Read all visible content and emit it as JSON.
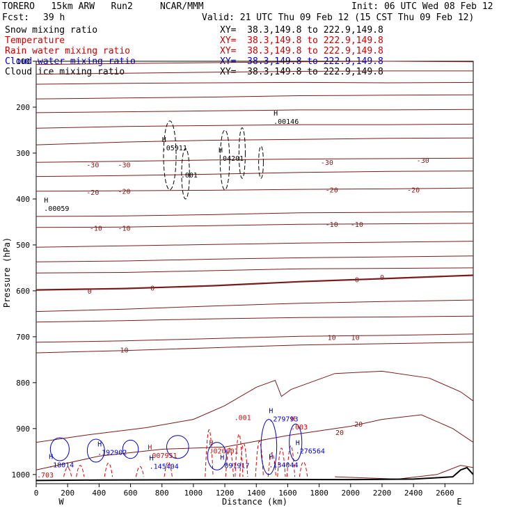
{
  "header": {
    "model": "TORERO   15km ARW   Run2     NCAR/MMM",
    "init": "Init: 06 UTC Wed 08 Feb 12",
    "fcst_label": "Fcst:",
    "fcst_value": "39 h",
    "valid": "Valid: 21 UTC Thu 09 Feb 12 (15 CST Thu 09 Feb 12)"
  },
  "fields": [
    {
      "name": "Snow mixing ratio",
      "xy": "XY=  38.3,149.8 to 222.9,149.8",
      "color": "#000000",
      "xy_color": "#000000"
    },
    {
      "name": "Temperature",
      "xy": "XY=  38.3,149.8 to 222.9,149.8",
      "color": "#cc0000",
      "xy_color": "#cc0000"
    },
    {
      "name": "Rain water mixing ratio",
      "xy": "XY=  38.3,149.8 to 222.9,149.8",
      "color": "#cc0000",
      "xy_color": "#cc0000"
    },
    {
      "name": "Cloud water mixing ratio",
      "xy": "XY=  38.3,149.8 to 222.9,149.8",
      "color": "#0000cc",
      "xy_color": "#0000cc"
    },
    {
      "name": "Cloud ice mixing ratio",
      "xy": "XY=  38.3,149.8 to 222.9,149.8",
      "color": "#000000",
      "xy_color": "#000000"
    }
  ],
  "chart_data": {
    "type": "line",
    "xlabel": "Distance (km)",
    "ylabel": "Pressure (hPa)",
    "xlim": [
      0,
      2780
    ],
    "ylim": [
      1020,
      100
    ],
    "x_ticks": [
      0,
      200,
      400,
      600,
      800,
      1000,
      1200,
      1400,
      1600,
      1800,
      2000,
      2200,
      2400,
      2600
    ],
    "y_ticks": [
      100,
      200,
      300,
      400,
      500,
      600,
      700,
      800,
      900,
      1000
    ],
    "x_end_labels": {
      "left": "W",
      "right": "E"
    },
    "temperature_isotherm_labels": [
      {
        "value": "-30",
        "x": 360,
        "p": 325
      },
      {
        "value": "-30",
        "x": 560,
        "p": 325
      },
      {
        "value": "-30",
        "x": 1850,
        "p": 320
      },
      {
        "value": "-30",
        "x": 2460,
        "p": 315
      },
      {
        "value": "-20",
        "x": 360,
        "p": 385
      },
      {
        "value": "-20",
        "x": 560,
        "p": 383
      },
      {
        "value": "-20",
        "x": 1880,
        "p": 380
      },
      {
        "value": "-20",
        "x": 2400,
        "p": 380
      },
      {
        "value": "-10",
        "x": 380,
        "p": 463
      },
      {
        "value": "-10",
        "x": 560,
        "p": 463
      },
      {
        "value": "-10",
        "x": 1880,
        "p": 455
      },
      {
        "value": "-10",
        "x": 2040,
        "p": 455
      },
      {
        "value": "0",
        "x": 340,
        "p": 600
      },
      {
        "value": "0",
        "x": 740,
        "p": 593
      },
      {
        "value": "0",
        "x": 2040,
        "p": 575
      },
      {
        "value": "0",
        "x": 2200,
        "p": 570
      },
      {
        "value": "10",
        "x": 560,
        "p": 728
      },
      {
        "value": "10",
        "x": 1880,
        "p": 701
      },
      {
        "value": "10",
        "x": 2030,
        "p": 701
      },
      {
        "value": "20",
        "x": 1930,
        "p": 908
      },
      {
        "value": "20",
        "x": 2050,
        "p": 890
      }
    ],
    "snow_maxima": [
      {
        "label": "H",
        "value": ".05911",
        "x": 800,
        "p": 285
      },
      {
        "label": "H",
        "value": ".04201",
        "x": 1160,
        "p": 308
      },
      {
        "label": "H",
        "value": ".00146",
        "x": 1510,
        "p": 227
      },
      {
        "label": "H",
        "value": ".00059",
        "x": 50,
        "p": 417
      },
      {
        "label": "",
        "value": ".001",
        "x": 920,
        "p": 344
      }
    ],
    "rain_maxima": [
      {
        "label": "H",
        "value": ".007951",
        "x": 710,
        "p": 955
      },
      {
        "label": "H",
        "value": ".020001",
        "x": 1100,
        "p": 945
      },
      {
        "label": "",
        "value": ".001",
        "x": 1260,
        "p": 872
      },
      {
        "label": "H",
        "value": ".003",
        "x": 1620,
        "p": 893
      }
    ],
    "cloud_water_maxima": [
      {
        "label": "H",
        "value": ".18014",
        "x": 80,
        "p": 975
      },
      {
        "label": "H",
        "value": ".145404",
        "x": 720,
        "p": 978
      },
      {
        "label": "H",
        "value": ".091917",
        "x": 1170,
        "p": 977
      },
      {
        "label": "H",
        "value": ".279793",
        "x": 1480,
        "p": 875
      },
      {
        "label": "H",
        "value": ".276564",
        "x": 1650,
        "p": 945
      },
      {
        "label": "H",
        "value": ".134044",
        "x": 1480,
        "p": 975
      },
      {
        "label": "H",
        "value": ".192902",
        "x": 390,
        "p": 948
      }
    ],
    "corner_label": ".703",
    "grid": false
  }
}
